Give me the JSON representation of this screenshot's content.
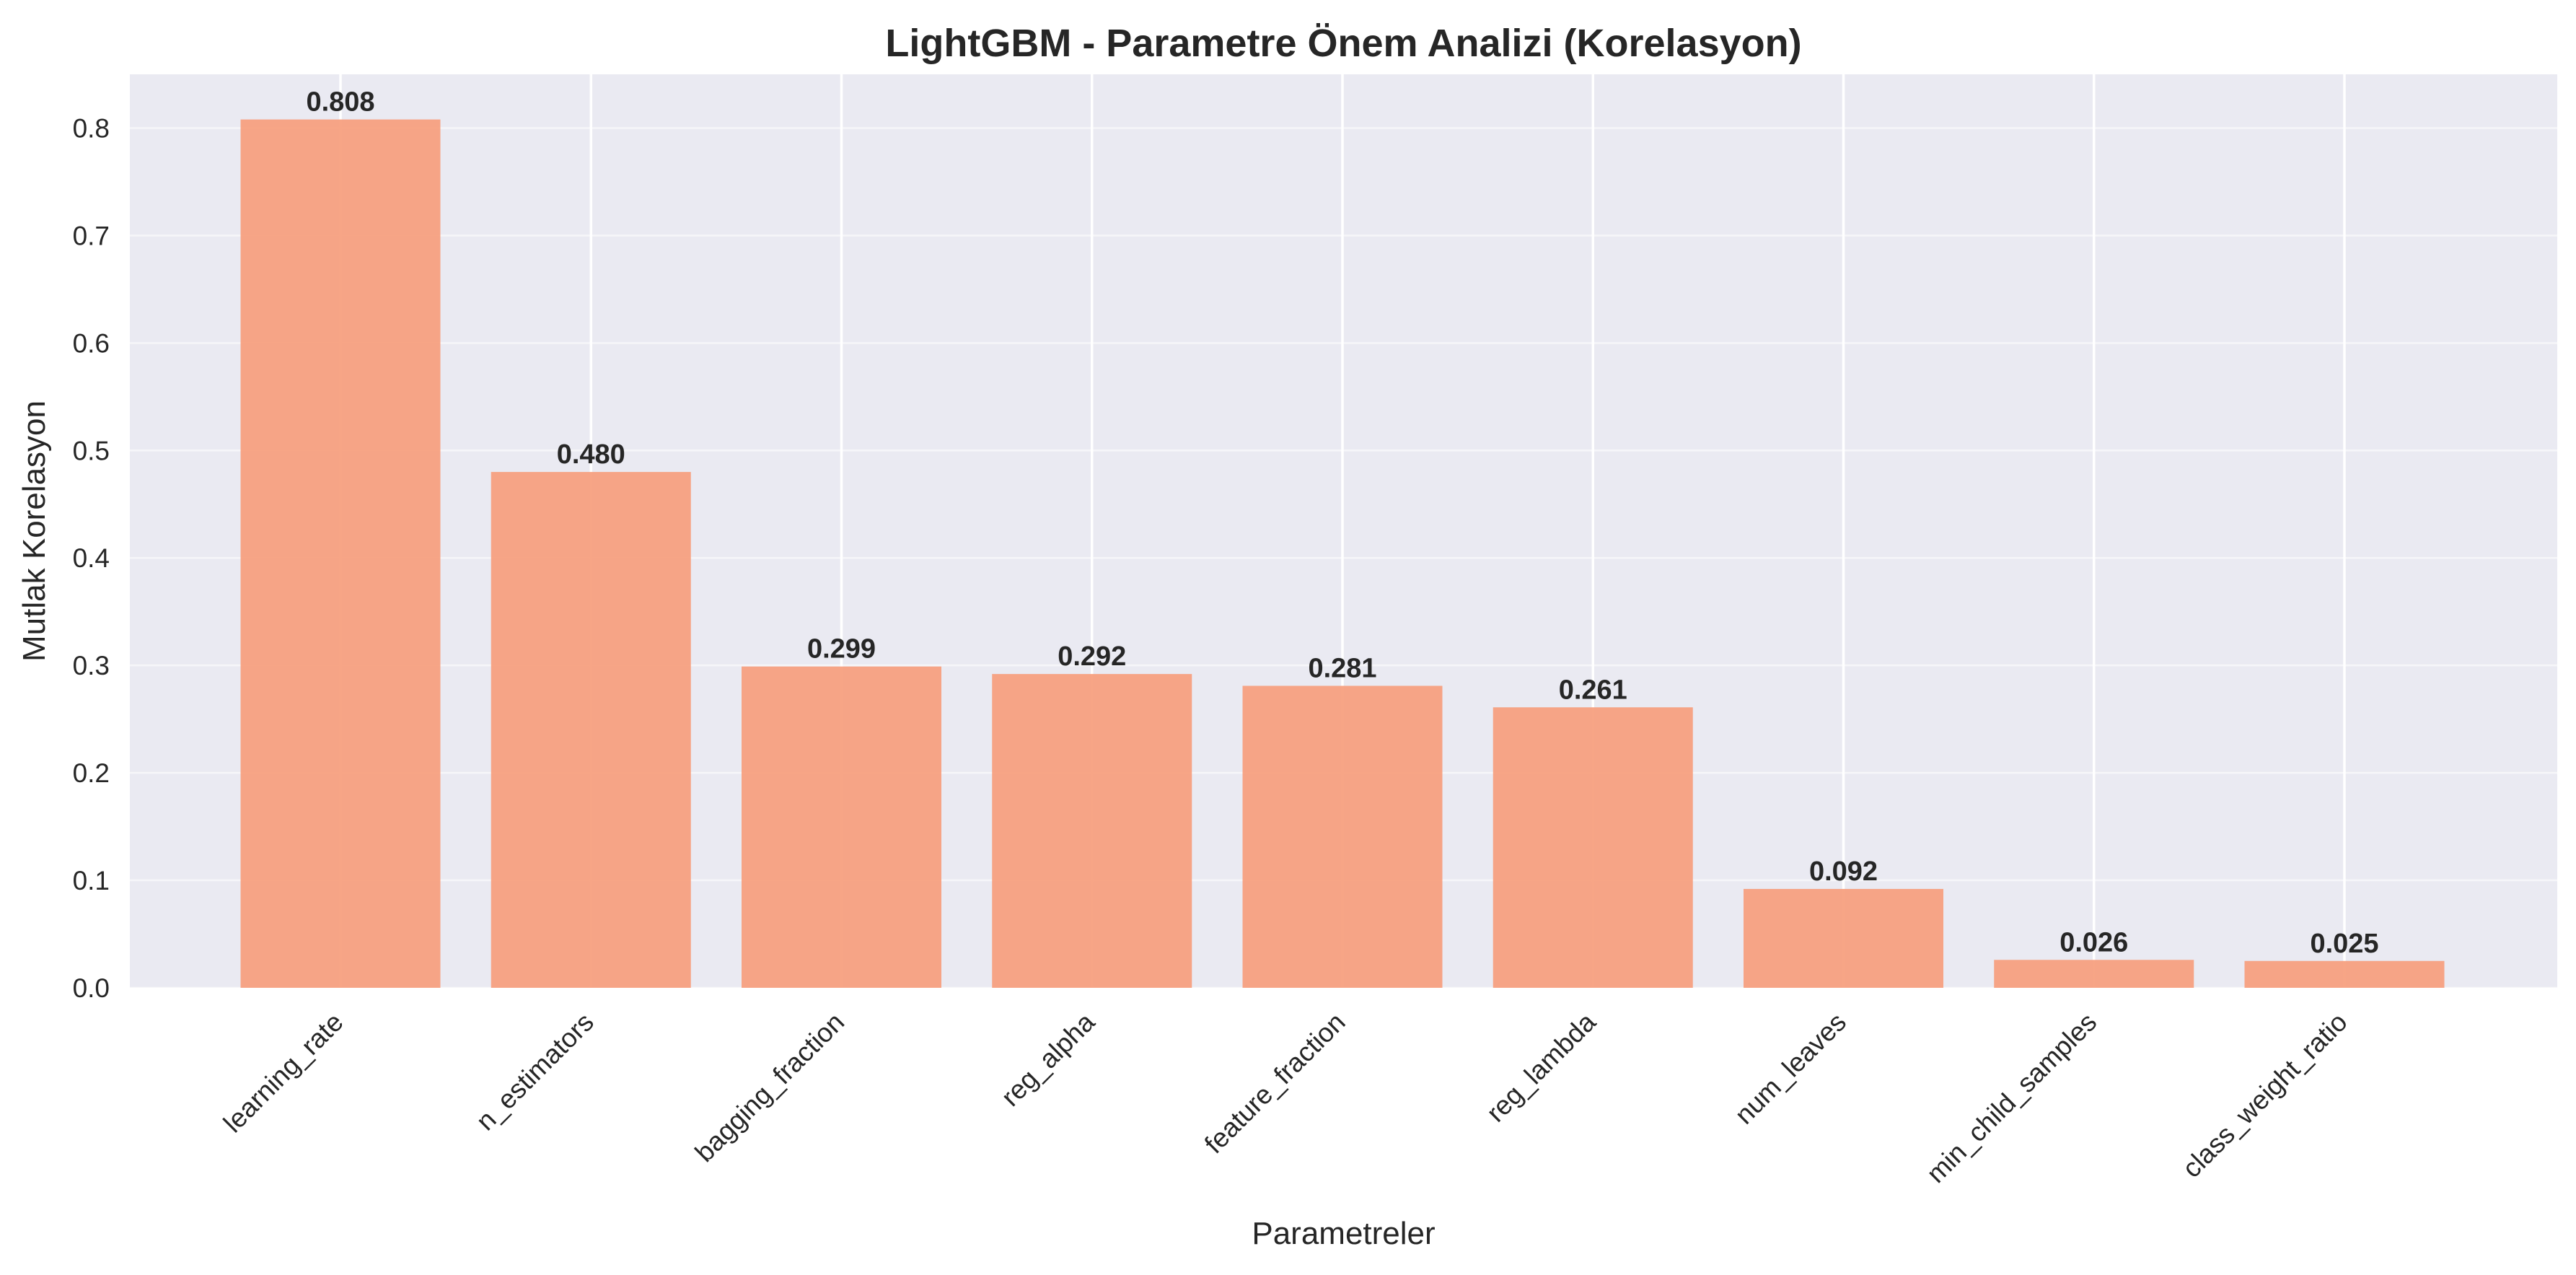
{
  "chart_data": {
    "type": "bar",
    "title": "LightGBM - Parametre Önem Analizi (Korelasyon)",
    "xlabel": "Parametreler",
    "ylabel": "Mutlak Korelasyon",
    "categories": [
      "learning_rate",
      "n_estimators",
      "bagging_fraction",
      "reg_alpha",
      "feature_fraction",
      "reg_lambda",
      "num_leaves",
      "min_child_samples",
      "class_weight_ratio"
    ],
    "values": [
      0.808,
      0.48,
      0.299,
      0.292,
      0.281,
      0.261,
      0.092,
      0.026,
      0.025
    ],
    "value_labels": [
      "0.808",
      "0.480",
      "0.299",
      "0.292",
      "0.281",
      "0.261",
      "0.092",
      "0.026",
      "0.025"
    ],
    "yticks": [
      "0.0",
      "0.1",
      "0.2",
      "0.3",
      "0.4",
      "0.5",
      "0.6",
      "0.7",
      "0.8"
    ],
    "ylim": [
      0,
      0.85
    ],
    "grid": true,
    "colors": {
      "bar": "#f7a07f",
      "plot_background": "#eaeaf2",
      "grid": "#ffffff",
      "text": "#262626"
    }
  }
}
